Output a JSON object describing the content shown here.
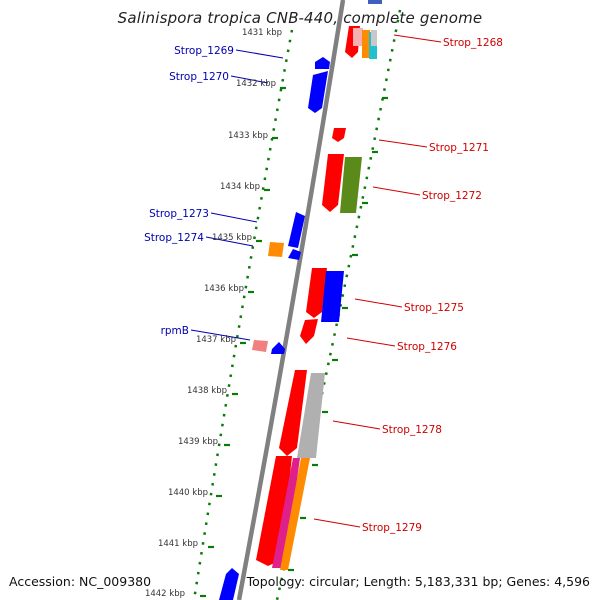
{
  "title": "Salinispora tropica CNB-440, complete genome",
  "accession": "Accession: NC_009380",
  "topology": "Topology: circular; Length: 5,183,331 bp; Genes: 4,596",
  "colors": {
    "backbone": "#808080",
    "tick_dots": "#0a7a0a",
    "left_labels": "#0000b0",
    "right_labels": "#d00000",
    "ruler_text": "#333333",
    "gene_red": "#ff0000",
    "gene_blue": "#0000ff",
    "gene_orange": "#ff8c00",
    "gene_olive": "#5a8a1a",
    "gene_grey": "#b0b0b0",
    "gene_magenta": "#e0208a",
    "gene_pink": "#f08080",
    "gene_cyan": "#20c0d0"
  },
  "ruler": {
    "unit": "kbp",
    "ticks": [
      "1431 kbp",
      "1432 kbp",
      "1433 kbp",
      "1434 kbp",
      "1435 kbp",
      "1436 kbp",
      "1437 kbp",
      "1438 kbp",
      "1439 kbp",
      "1440 kbp",
      "1441 kbp",
      "1442 kbp"
    ]
  },
  "gene_labels": {
    "left": [
      "Strop_1269",
      "Strop_1270",
      "Strop_1273",
      "Strop_1274",
      "rpmB"
    ],
    "right": [
      "Strop_1268",
      "Strop_1271",
      "Strop_1272",
      "Strop_1275",
      "Strop_1276",
      "Strop_1278",
      "Strop_1279"
    ]
  }
}
